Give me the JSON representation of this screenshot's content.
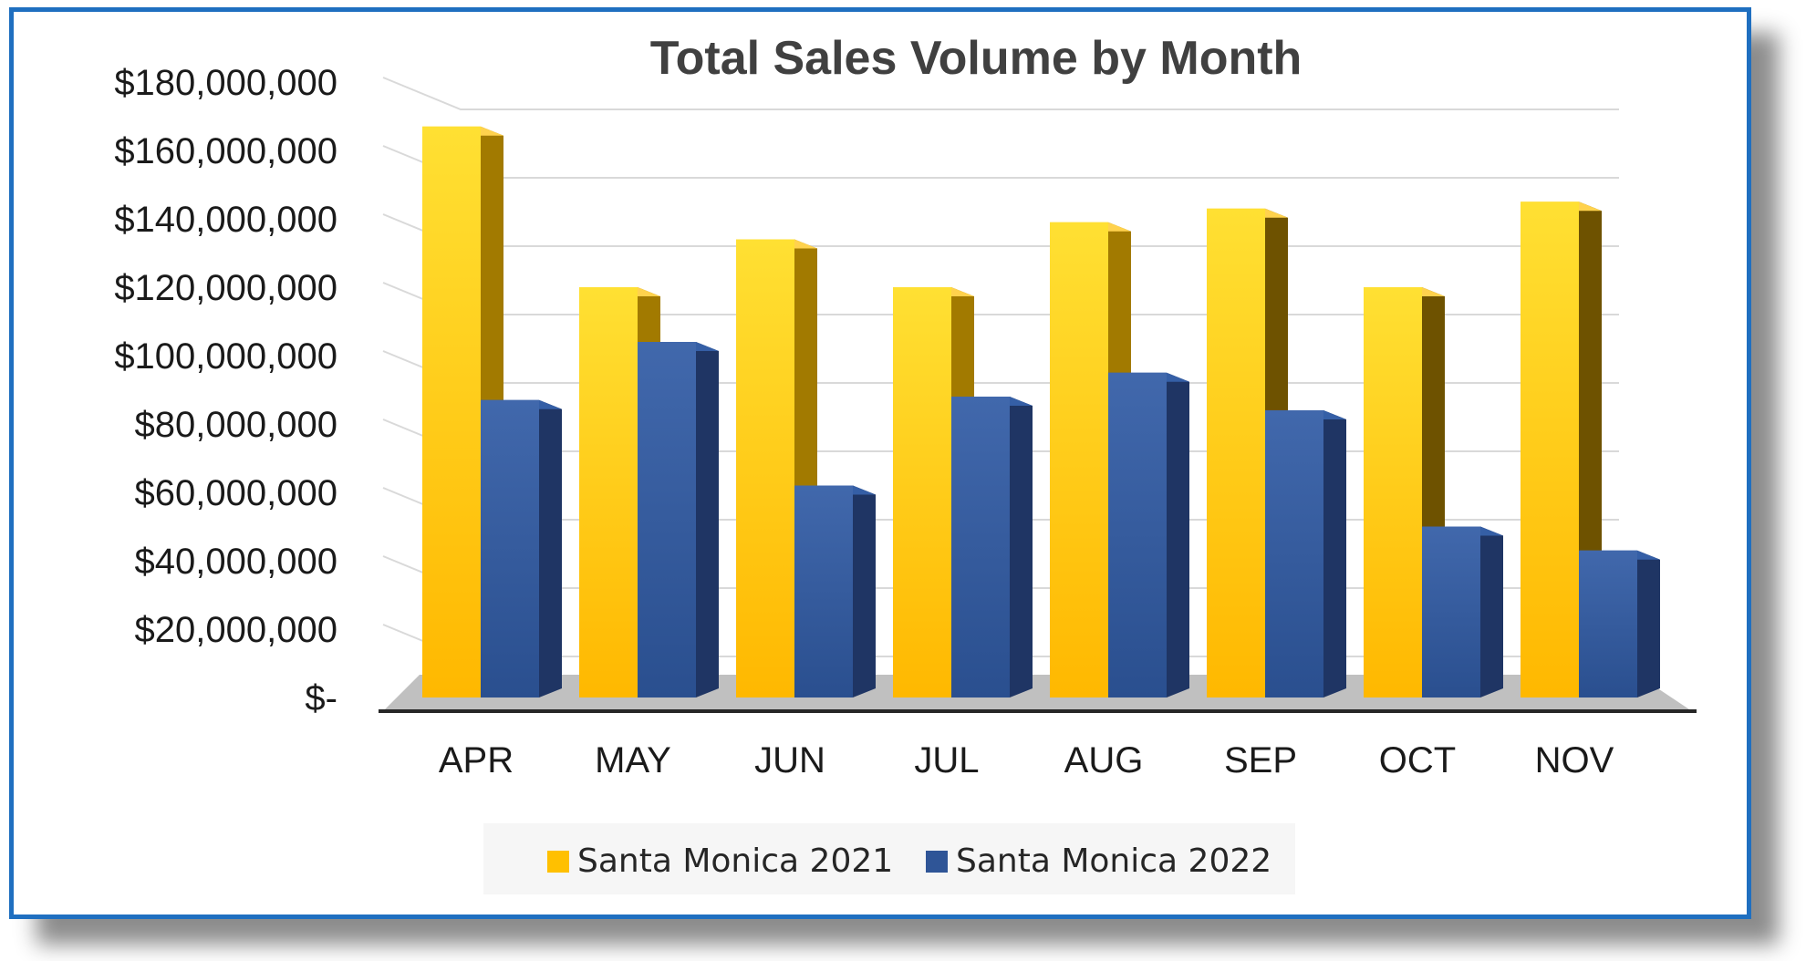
{
  "chart_data": {
    "type": "bar",
    "title": "Total Sales Volume by Month",
    "xlabel": "",
    "ylabel": "",
    "categories": [
      "APR",
      "MAY",
      "JUN",
      "JUL",
      "AUG",
      "SEP",
      "OCT",
      "NOV"
    ],
    "series": [
      {
        "name": "Santa Monica 2021",
        "color": "#FFC000",
        "values": [
          167000000,
          120000000,
          134000000,
          120000000,
          139000000,
          143000000,
          120000000,
          145000000
        ]
      },
      {
        "name": "Santa Monica 2022",
        "color": "#2F5597",
        "values": [
          87000000,
          104000000,
          62000000,
          88000000,
          95000000,
          84000000,
          50000000,
          43000000
        ]
      }
    ],
    "ylim": [
      0,
      180000000
    ],
    "yticks": [
      0,
      20000000,
      40000000,
      60000000,
      80000000,
      100000000,
      120000000,
      140000000,
      160000000,
      180000000
    ],
    "ytick_labels": [
      "$-",
      "$20,000,000",
      "$40,000,000",
      "$60,000,000",
      "$80,000,000",
      "$100,000,000",
      "$120,000,000",
      "$140,000,000",
      "$160,000,000",
      "$180,000,000"
    ],
    "grid": true,
    "legend_position": "bottom",
    "style": "3d-clustered-column"
  }
}
